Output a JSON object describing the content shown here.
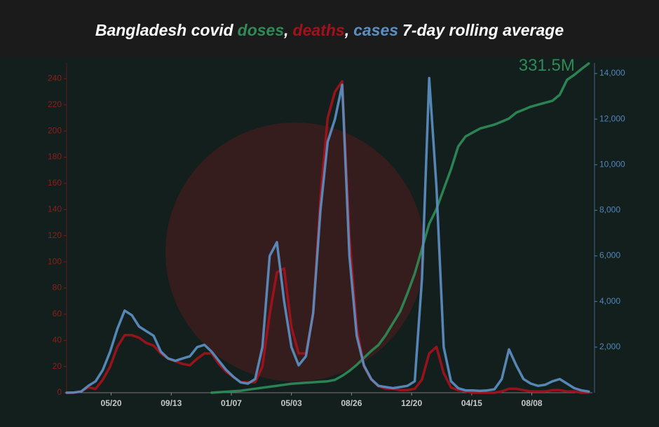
{
  "chart_data": {
    "type": "line",
    "title_prefix": "Bangladesh covid",
    "title_separator": ",",
    "title_suffix": "7-day rolling average",
    "x": [
      0,
      14,
      28,
      42,
      56,
      70,
      84,
      98,
      112,
      126,
      140,
      154,
      168,
      182,
      196,
      210,
      224,
      238,
      252,
      266,
      280,
      294,
      308,
      322,
      336,
      350,
      364,
      378,
      392,
      406,
      420,
      434,
      448,
      462,
      476,
      490,
      504,
      518,
      532,
      546,
      560,
      574,
      588,
      602,
      616,
      630,
      644,
      658,
      672,
      686,
      700,
      714,
      728,
      742,
      756,
      770,
      784,
      798,
      812,
      826,
      840,
      854,
      868,
      882,
      896,
      910,
      924,
      938,
      952,
      966,
      980,
      994,
      1008
    ],
    "xlim": [
      0,
      1015
    ],
    "xticks": [
      {
        "value": 86,
        "label": "05/20"
      },
      {
        "value": 202,
        "label": "09/13"
      },
      {
        "value": 318,
        "label": "01/07"
      },
      {
        "value": 434,
        "label": "05/03"
      },
      {
        "value": 550,
        "label": "08/26"
      },
      {
        "value": 666,
        "label": "12/20"
      },
      {
        "value": 782,
        "label": "04/15"
      },
      {
        "value": 898,
        "label": "08/08"
      }
    ],
    "ylim": [
      0,
      252
    ],
    "yticks": [
      0,
      20,
      40,
      60,
      80,
      100,
      120,
      140,
      160,
      180,
      200,
      220,
      240
    ],
    "y2lim": [
      0,
      14460
    ],
    "y2ticks": [
      {
        "value": 2000,
        "label": "2,000"
      },
      {
        "value": 4000,
        "label": "4,000"
      },
      {
        "value": 6000,
        "label": "6,000"
      },
      {
        "value": 8000,
        "label": "8,000"
      },
      {
        "value": 10000,
        "label": "10,000"
      },
      {
        "value": 12000,
        "label": "12,000"
      },
      {
        "value": 14000,
        "label": "14,000"
      }
    ],
    "y3lim": [
      0,
      332
    ],
    "series": [
      {
        "name": "doses",
        "color": "#2e8b57",
        "axis": "y3",
        "end_label": "331.5M",
        "values": [
          null,
          null,
          null,
          null,
          null,
          null,
          null,
          null,
          null,
          null,
          null,
          null,
          null,
          null,
          null,
          null,
          null,
          null,
          null,
          null,
          0,
          0.5,
          1,
          1.5,
          2,
          3,
          4,
          5,
          6,
          7,
          8,
          9,
          9.5,
          10,
          10.5,
          11,
          11.5,
          13,
          17,
          22,
          28,
          35,
          42,
          48,
          58,
          70,
          82,
          100,
          120,
          145,
          170,
          185,
          205,
          225,
          248,
          258,
          262,
          266,
          268,
          270,
          273,
          276,
          282,
          285,
          288,
          290,
          292,
          294,
          300,
          315,
          320,
          326,
          331.5
        ]
      },
      {
        "name": "deaths",
        "color": "#a3121c",
        "axis": "y",
        "values": [
          0,
          0,
          1,
          4,
          3,
          10,
          20,
          35,
          44,
          44,
          42,
          38,
          36,
          30,
          26,
          24,
          22,
          21,
          26,
          30,
          30,
          22,
          16,
          12,
          8,
          8,
          8,
          20,
          60,
          92,
          95,
          50,
          30,
          30,
          60,
          150,
          210,
          230,
          238,
          120,
          50,
          20,
          10,
          5,
          3,
          3,
          2,
          2,
          3,
          10,
          30,
          35,
          15,
          4,
          2,
          1,
          0,
          0,
          0,
          0,
          1,
          3,
          3,
          2,
          1,
          1,
          1,
          2,
          2,
          1,
          1,
          0,
          0
        ]
      },
      {
        "name": "cases",
        "color": "#5b8fc2",
        "axis": "y2",
        "values": [
          0,
          10,
          50,
          300,
          500,
          1000,
          1800,
          2800,
          3600,
          3400,
          2900,
          2700,
          2500,
          1800,
          1500,
          1400,
          1500,
          1600,
          2000,
          2100,
          1800,
          1400,
          1000,
          700,
          450,
          400,
          600,
          2000,
          6000,
          6600,
          4000,
          2000,
          1200,
          1600,
          3500,
          8000,
          11000,
          12000,
          13500,
          6000,
          2500,
          1200,
          600,
          300,
          250,
          200,
          250,
          300,
          500,
          5000,
          13800,
          9000,
          2000,
          500,
          200,
          100,
          100,
          80,
          100,
          150,
          600,
          1900,
          1200,
          600,
          400,
          300,
          350,
          500,
          600,
          400,
          200,
          100,
          50
        ]
      }
    ]
  }
}
